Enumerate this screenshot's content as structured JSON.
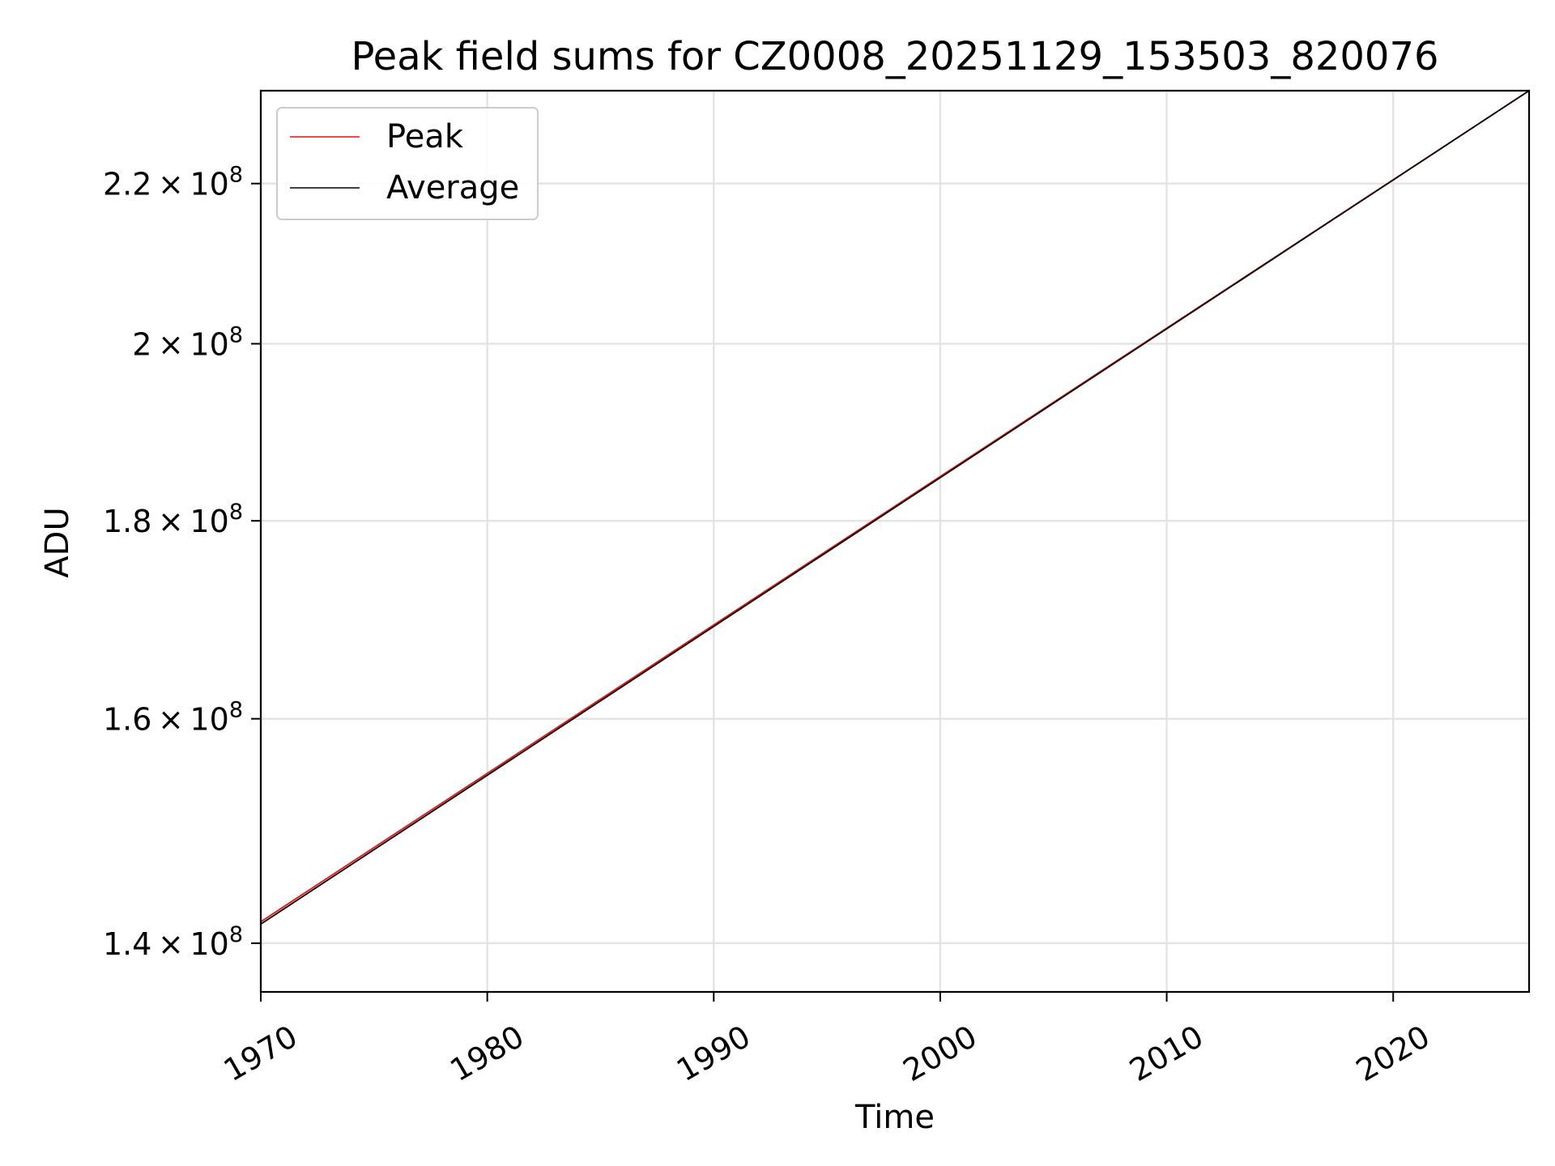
{
  "chart_data": {
    "type": "line",
    "title": "Peak field sums for CZ0008_20251129_153503_820076",
    "xlabel": "Time",
    "ylabel": "ADU",
    "yscale": "log",
    "grid": true,
    "legend_position": "top-left",
    "xlim": [
      1970,
      2026
    ],
    "ylim": [
      136000000,
      232500000
    ],
    "x_ticks": [
      1970,
      1980,
      1990,
      2000,
      2010,
      2020
    ],
    "x_tick_labels": [
      "1970",
      "1980",
      "1990",
      "2000",
      "2010",
      "2020"
    ],
    "y_ticks": [
      {
        "value": 140000000,
        "mantissa": "1.4",
        "base": "10",
        "exp": "8"
      },
      {
        "value": 160000000,
        "mantissa": "1.6",
        "base": "10",
        "exp": "8"
      },
      {
        "value": 180000000,
        "mantissa": "1.8",
        "base": "10",
        "exp": "8"
      },
      {
        "value": 200000000,
        "mantissa": "2",
        "base": "10",
        "exp": "8"
      },
      {
        "value": 220000000,
        "mantissa": "2.2",
        "base": "10",
        "exp": "8"
      }
    ],
    "series": [
      {
        "name": "Peak",
        "color": "#e8110f",
        "x": [
          1970,
          2026
        ],
        "y": [
          141800000,
          232500000
        ]
      },
      {
        "name": "Average",
        "color": "#000000",
        "x": [
          1970,
          2026
        ],
        "y": [
          141600000,
          232500000
        ]
      }
    ]
  }
}
